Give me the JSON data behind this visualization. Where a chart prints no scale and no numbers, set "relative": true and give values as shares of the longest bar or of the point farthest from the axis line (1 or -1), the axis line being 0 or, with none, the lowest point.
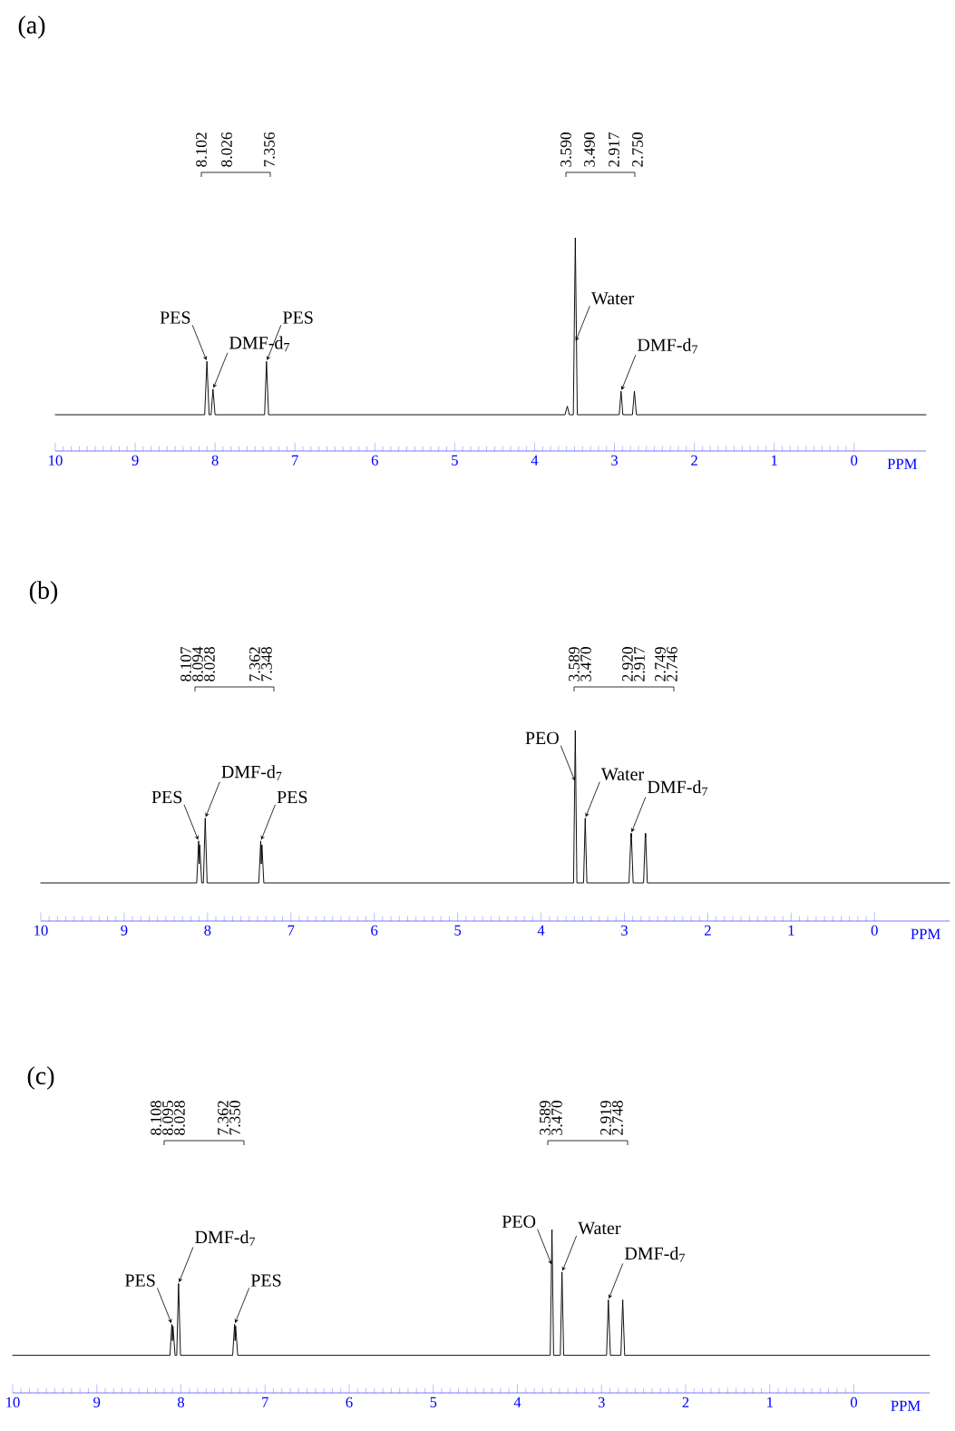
{
  "chart_data": [
    {
      "type": "line",
      "title": "(a)",
      "relative": true,
      "xlabel": "PPM",
      "xlim": [
        10,
        -0.9
      ],
      "xticks": [
        10,
        9,
        8,
        7,
        6,
        5,
        4,
        3,
        2,
        1,
        0
      ],
      "x": [
        10,
        8.13,
        8.102,
        8.075,
        8.05,
        8.026,
        8.0,
        7.38,
        7.356,
        7.33,
        3.62,
        3.59,
        3.565,
        3.515,
        3.49,
        3.465,
        2.94,
        2.917,
        2.895,
        2.775,
        2.75,
        2.725,
        -0.9
      ],
      "series": [
        {
          "color": "#000000",
          "values": [
            0.17,
            0.17,
            0.42,
            0.17,
            0.17,
            0.29,
            0.17,
            0.17,
            0.42,
            0.17,
            0.17,
            0.21,
            0.17,
            0.17,
            1,
            0.17,
            0.17,
            0.28,
            0.17,
            0.17,
            0.28,
            0.17,
            0.17
          ]
        }
      ],
      "annotations": [
        "8.102",
        "8.026",
        "7.356",
        "3.590",
        "3.490",
        "2.917",
        "2.750",
        {
          "text": "PES",
          "x": 8.102,
          "y": 0.42
        },
        {
          "text": "DMF-d$_{7}$",
          "x": 8.026,
          "y": 0.29
        },
        {
          "text": "PES",
          "x": 7.356,
          "y": 0.42
        },
        {
          "text": "Water",
          "x": 3.49,
          "y": 0.51
        },
        {
          "text": "DMF-d$_{7}$",
          "x": 2.917,
          "y": 0.28
        }
      ]
    },
    {
      "type": "line",
      "title": "(b)",
      "relative": true,
      "xlabel": "PPM",
      "xlim": [
        10,
        -0.9
      ],
      "xticks": [
        10,
        9,
        8,
        7,
        6,
        5,
        4,
        3,
        2,
        1,
        0
      ],
      "x": [
        10,
        8.13,
        8.107,
        8.1,
        8.094,
        8.07,
        8.05,
        8.028,
        8.005,
        7.385,
        7.362,
        7.355,
        7.348,
        7.325,
        3.61,
        3.589,
        3.57,
        3.49,
        3.47,
        3.45,
        2.945,
        2.92,
        2.918,
        2.917,
        2.895,
        2.77,
        2.749,
        2.747,
        2.746,
        2.725,
        -0.9
      ],
      "series": [
        {
          "color": "#000000",
          "values": [
            0.2,
            0.2,
            0.42,
            0.3,
            0.4,
            0.2,
            0.2,
            0.54,
            0.2,
            0.2,
            0.42,
            0.3,
            0.4,
            0.2,
            0.2,
            1,
            0.2,
            0.2,
            0.54,
            0.2,
            0.2,
            0.46,
            0.44,
            0.46,
            0.2,
            0.2,
            0.46,
            0.44,
            0.46,
            0.2,
            0.2
          ]
        }
      ],
      "annotations": [
        "8.107",
        "8.094",
        "8.028",
        "7.362",
        "7.348",
        "3.589",
        "3.470",
        "2.920",
        "2.917",
        "2.749",
        "2.746",
        {
          "text": "PES",
          "x": 8.107,
          "y": 0.42
        },
        {
          "text": "DMF-d$_{7}$",
          "x": 8.028,
          "y": 0.54
        },
        {
          "text": "PES",
          "x": 7.362,
          "y": 0.42
        },
        {
          "text": "PEO",
          "x": 3.589,
          "y": 0.73
        },
        {
          "text": "Water",
          "x": 3.47,
          "y": 0.54
        },
        {
          "text": "DMF-d$_{7}$",
          "x": 2.92,
          "y": 0.46
        }
      ]
    },
    {
      "type": "line",
      "title": "(c)",
      "relative": true,
      "xlabel": "PPM",
      "xlim": [
        10,
        -0.9
      ],
      "xticks": [
        10,
        9,
        8,
        7,
        6,
        5,
        4,
        3,
        2,
        1,
        0
      ],
      "x": [
        10,
        8.13,
        8.108,
        8.1,
        8.095,
        8.07,
        8.05,
        8.028,
        8.005,
        7.385,
        7.362,
        7.356,
        7.35,
        7.325,
        3.61,
        3.589,
        3.57,
        3.49,
        3.47,
        3.45,
        2.94,
        2.919,
        2.895,
        2.77,
        2.748,
        2.725,
        -0.9
      ],
      "series": [
        {
          "color": "#000000",
          "values": [
            0.23,
            0.23,
            0.42,
            0.32,
            0.41,
            0.23,
            0.23,
            0.67,
            0.23,
            0.23,
            0.42,
            0.32,
            0.41,
            0.23,
            0.23,
            1,
            0.23,
            0.23,
            0.74,
            0.23,
            0.23,
            0.57,
            0.23,
            0.23,
            0.57,
            0.23,
            0.23
          ]
        }
      ],
      "annotations": [
        "8.108",
        "8.095",
        "8.028",
        "7.362",
        "7.350",
        "3.589",
        "3.470",
        "2.919",
        "2.748",
        {
          "text": "PES",
          "x": 8.108,
          "y": 0.42
        },
        {
          "text": "DMF-d$_{7}$",
          "x": 8.028,
          "y": 0.67
        },
        {
          "text": "PES",
          "x": 7.362,
          "y": 0.42
        },
        {
          "text": "PEO",
          "x": 3.589,
          "y": 0.78
        },
        {
          "text": "Water",
          "x": 3.47,
          "y": 0.74
        },
        {
          "text": "DMF-d$_{7}$",
          "x": 2.919,
          "y": 0.57
        }
      ]
    }
  ]
}
